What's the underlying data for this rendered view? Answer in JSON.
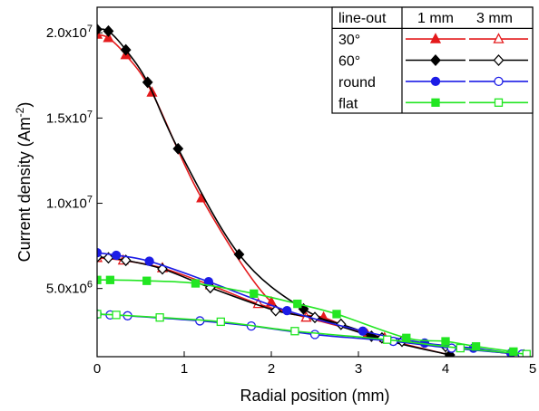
{
  "chart_data": {
    "type": "line",
    "xlabel": "Radial position (mm)",
    "ylabel_main": "Current density (Am",
    "ylabel_sup": "-2",
    "ylabel_close": ")",
    "xlim": [
      0,
      5
    ],
    "ylim": [
      1000000,
      21500000
    ],
    "x_ticks": [
      0,
      1,
      2,
      3,
      4,
      5
    ],
    "x_tick_labels": [
      "0",
      "1",
      "2",
      "3",
      "4",
      "5"
    ],
    "y_ticks": [
      5000000,
      10000000,
      15000000,
      20000000
    ],
    "y_tick_mantissa": [
      "5.0x10",
      "1.0x10",
      "1.5x10",
      "2.0x10"
    ],
    "y_tick_exponent": [
      "6",
      "7",
      "7",
      "7"
    ],
    "legend": {
      "header": [
        "line-out",
        "1 mm",
        "3 mm"
      ],
      "rows": [
        "30°",
        "60°",
        "round",
        "flat"
      ]
    },
    "series": [
      {
        "name": "30°",
        "lineout": "1 mm",
        "color": "#e41a1c",
        "marker": "triangle",
        "filled": true,
        "x": [
          0,
          0.13,
          0.33,
          0.63,
          1.2,
          2.0,
          2.6,
          3.1,
          4.05
        ],
        "y": [
          19900000,
          19700000,
          18700000,
          16500000,
          10300000,
          4200000,
          3300000,
          2300000,
          1100000
        ]
      },
      {
        "name": "30°",
        "lineout": "3 mm",
        "color": "#e41a1c",
        "marker": "triangle",
        "filled": false,
        "x": [
          0,
          0.3,
          0.75,
          1.3,
          1.85,
          2.4,
          3.3
        ],
        "y": [
          6800000,
          6650000,
          6200000,
          5200000,
          4100000,
          3300000,
          2100000
        ]
      },
      {
        "name": "60°",
        "lineout": "1 mm",
        "color": "#000000",
        "marker": "diamond",
        "filled": true,
        "x": [
          0,
          0.13,
          0.33,
          0.58,
          0.93,
          1.63,
          2.37,
          3.15,
          4.05
        ],
        "y": [
          20200000,
          20100000,
          19000000,
          17100000,
          13200000,
          7000000,
          3800000,
          2200000,
          1100000
        ]
      },
      {
        "name": "60°",
        "lineout": "3 mm",
        "color": "#000000",
        "marker": "diamond",
        "filled": false,
        "x": [
          0,
          0.13,
          0.33,
          0.75,
          1.3,
          2.05,
          2.5,
          2.8,
          3.27,
          3.5,
          4.0,
          4.9
        ],
        "y": [
          6850000,
          6800000,
          6650000,
          6150000,
          5050000,
          3700000,
          3300000,
          2900000,
          2100000,
          1900000,
          1600000,
          1100000
        ]
      },
      {
        "name": "round",
        "lineout": "1 mm",
        "color": "#1c1ce6",
        "marker": "circle",
        "filled": true,
        "x": [
          0,
          0.22,
          0.6,
          1.28,
          2.18,
          3.05,
          3.76,
          4.32,
          4.75
        ],
        "y": [
          7100000,
          6950000,
          6600000,
          5400000,
          3700000,
          2500000,
          1800000,
          1500000,
          1200000
        ]
      },
      {
        "name": "round",
        "lineout": "3 mm",
        "color": "#1c1ce6",
        "marker": "circle",
        "filled": false,
        "x": [
          0,
          0.15,
          0.35,
          1.18,
          1.77,
          2.5,
          3.4,
          4.07,
          4.88
        ],
        "y": [
          3500000,
          3450000,
          3400000,
          3100000,
          2800000,
          2300000,
          1900000,
          1500000,
          1150000
        ]
      },
      {
        "name": "flat",
        "lineout": "1 mm",
        "color": "#22e622",
        "marker": "square",
        "filled": true,
        "x": [
          0,
          0.15,
          0.57,
          1.13,
          1.8,
          2.3,
          2.75,
          3.55,
          4.0,
          4.35,
          4.78
        ],
        "y": [
          5500000,
          5500000,
          5450000,
          5300000,
          4700000,
          4100000,
          3500000,
          2100000,
          1900000,
          1600000,
          1300000
        ]
      },
      {
        "name": "flat",
        "lineout": "3 mm",
        "color": "#22e622",
        "marker": "square",
        "filled": false,
        "x": [
          0,
          0.22,
          0.72,
          1.42,
          2.27,
          3.33,
          4.17,
          4.93
        ],
        "y": [
          3500000,
          3450000,
          3300000,
          3050000,
          2500000,
          2000000,
          1500000,
          1150000
        ]
      }
    ]
  }
}
